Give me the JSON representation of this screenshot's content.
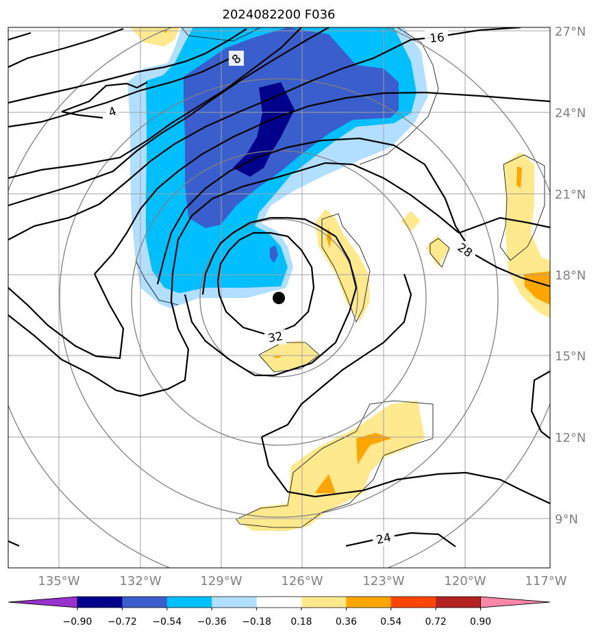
{
  "map": {
    "title": "2024082200 F036",
    "lat_ticks": [
      "27°N",
      "24°N",
      "21°N",
      "18°N",
      "15°N",
      "12°N",
      "9°N"
    ],
    "lon_ticks": [
      "135°W",
      "132°W",
      "129°W",
      "126°W",
      "123°W",
      "120°W",
      "117°W"
    ],
    "contour_labels": [
      "4",
      "8",
      "16",
      "28",
      "32",
      "24"
    ],
    "center_marker": "storm-center",
    "colorbar": {
      "labels": [
        "−0.90",
        "−0.72",
        "−0.54",
        "−0.36",
        "−0.18",
        "0.18",
        "0.36",
        "0.54",
        "0.72",
        "0.90"
      ],
      "colors": [
        "#9932cc",
        "#00008b",
        "#3a5fcd",
        "#00bfff",
        "#b2dfff",
        "#ffffff",
        "#ffe98f",
        "#ffa500",
        "#ff4500",
        "#b22222",
        "#ff88aa"
      ]
    },
    "colors": {
      "dark_navy": "#00008b",
      "royal_blue": "#3a5fcd",
      "sky_blue": "#00bfff",
      "light_blue": "#b2dfff",
      "light_yellow": "#ffe98f",
      "orange": "#ffa500",
      "grid": "#a0a0a0",
      "range_ring": "#808080",
      "contour": "#000000"
    }
  }
}
